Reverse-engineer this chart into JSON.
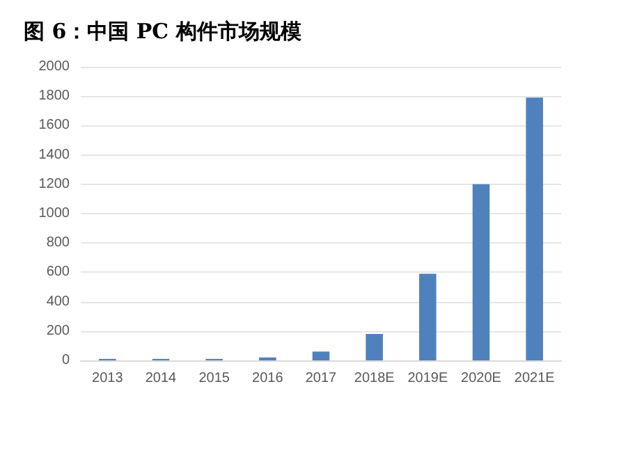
{
  "chart_data": {
    "type": "bar",
    "title": "图 6：中国 PC 构件市场规模",
    "categories": [
      "2013",
      "2014",
      "2015",
      "2016",
      "2017",
      "2018E",
      "2019E",
      "2020E",
      "2021E"
    ],
    "values": [
      10,
      10,
      10,
      20,
      60,
      180,
      590,
      1200,
      1790
    ],
    "color": "#4f81bd",
    "ylim": [
      0,
      2000
    ],
    "yticks": [
      0,
      200,
      400,
      600,
      800,
      1000,
      1200,
      1400,
      1600,
      1800,
      2000
    ],
    "grid": "y"
  }
}
